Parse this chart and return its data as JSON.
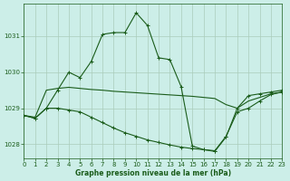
{
  "background_color": "#cceee8",
  "grid_color": "#aaccbb",
  "line_color": "#1a5c1a",
  "title": "Graphe pression niveau de la mer (hPa)",
  "ylim": [
    1027.6,
    1031.9
  ],
  "xlim": [
    0,
    23
  ],
  "yticks": [
    1028,
    1029,
    1030,
    1031
  ],
  "xticks": [
    0,
    1,
    2,
    3,
    4,
    5,
    6,
    7,
    8,
    9,
    10,
    11,
    12,
    13,
    14,
    15,
    16,
    17,
    18,
    19,
    20,
    21,
    22,
    23
  ],
  "s1_x": [
    0,
    1,
    2,
    3,
    4,
    5,
    6,
    7,
    8,
    9,
    10,
    11,
    12,
    13,
    14,
    15,
    16,
    17,
    18,
    19,
    20,
    21,
    22,
    23
  ],
  "s1_y": [
    1028.8,
    1028.72,
    1029.0,
    1029.5,
    1030.0,
    1029.85,
    1030.3,
    1031.05,
    1031.1,
    1031.1,
    1031.65,
    1031.3,
    1030.4,
    1030.35,
    1029.6,
    1027.95,
    1027.85,
    1027.8,
    1028.2,
    1029.0,
    1029.35,
    1029.4,
    1029.45,
    1029.5
  ],
  "s2_x": [
    0,
    1,
    2,
    3,
    4,
    5,
    6,
    7,
    8,
    9,
    10,
    11,
    12,
    13,
    14,
    15,
    16,
    17,
    18,
    19,
    20,
    21,
    22,
    23
  ],
  "s2_y": [
    1028.8,
    1028.75,
    1029.5,
    1029.55,
    1029.58,
    1029.55,
    1029.52,
    1029.5,
    1029.47,
    1029.45,
    1029.43,
    1029.41,
    1029.39,
    1029.37,
    1029.35,
    1029.33,
    1029.3,
    1029.27,
    1029.1,
    1029.0,
    1029.2,
    1029.3,
    1029.4,
    1029.45
  ],
  "s3_x": [
    0,
    1,
    2,
    3,
    4,
    5,
    6,
    7,
    8,
    9,
    10,
    11,
    12,
    13,
    14,
    15,
    16,
    17,
    18,
    19,
    20,
    21,
    22,
    23
  ],
  "s3_y": [
    1028.8,
    1028.72,
    1029.0,
    1029.0,
    1028.95,
    1028.9,
    1028.75,
    1028.6,
    1028.45,
    1028.32,
    1028.22,
    1028.12,
    1028.05,
    1027.98,
    1027.92,
    1027.88,
    1027.85,
    1027.82,
    1028.22,
    1028.9,
    1029.0,
    1029.2,
    1029.38,
    1029.45
  ]
}
